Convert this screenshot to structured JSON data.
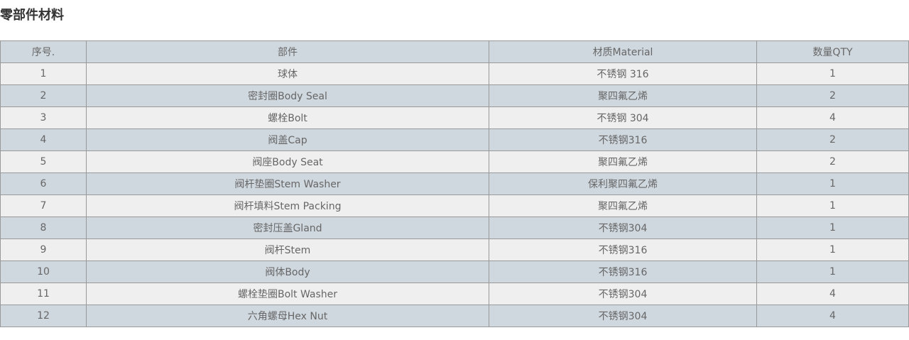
{
  "title": "零部件材料",
  "headers": [
    "序号.",
    "部件",
    "材质Material",
    "数量QTY"
  ],
  "rows": [
    [
      "1",
      "球体",
      "不锈钢 316",
      "1"
    ],
    [
      "2",
      "密封圈Body Seal",
      "聚四氟乙烯",
      "2"
    ],
    [
      "3",
      "螺栓Bolt",
      "不锈钢 304",
      "4"
    ],
    [
      "4",
      "阀盖Cap",
      "不锈钢316",
      "2"
    ],
    [
      "5",
      "阀座Body Seat",
      "聚四氟乙烯",
      "2"
    ],
    [
      "6",
      "阀杆垫圈Stem Washer",
      "保利聚四氟乙烯",
      "1"
    ],
    [
      "7",
      "阀杆填料Stem Packing",
      "聚四氟乙烯",
      "1"
    ],
    [
      "8",
      "密封压盖Gland",
      "不锈钢304",
      "1"
    ],
    [
      "9",
      "阀杆Stem",
      "不锈钢316",
      "1"
    ],
    [
      "10",
      "阀体Body",
      "不锈钢316",
      "1"
    ],
    [
      "11",
      "螺栓垫圈Bolt Washer",
      "不锈钢304",
      "4"
    ],
    [
      "12",
      "六角螺母Hex Nut",
      "不锈钢304",
      "4"
    ]
  ]
}
